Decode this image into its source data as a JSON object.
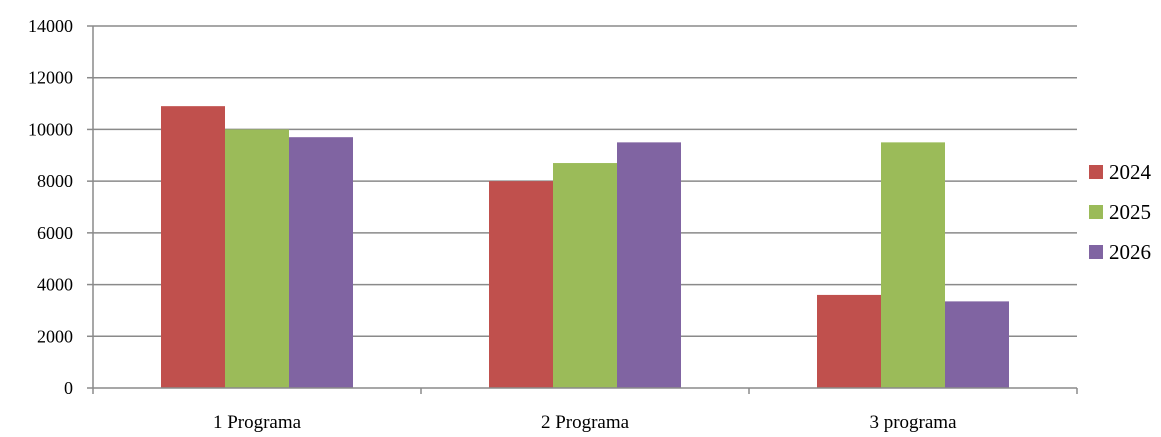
{
  "chart_data": {
    "type": "bar",
    "categories": [
      "1 Programa",
      "2 Programa",
      "3 programa"
    ],
    "series": [
      {
        "name": "2024",
        "values": [
          10900,
          8000,
          3600
        ],
        "color": "#c0504d"
      },
      {
        "name": "2025",
        "values": [
          10000,
          8700,
          9500
        ],
        "color": "#9bbb59"
      },
      {
        "name": "2026",
        "values": [
          9700,
          9500,
          3350
        ],
        "color": "#8064a2"
      }
    ],
    "yticks": [
      "0",
      "2000",
      "4000",
      "6000",
      "8000",
      "10000",
      "12000",
      "14000"
    ],
    "ylim": [
      0,
      14000
    ],
    "grid": true,
    "legend_position": "right"
  }
}
